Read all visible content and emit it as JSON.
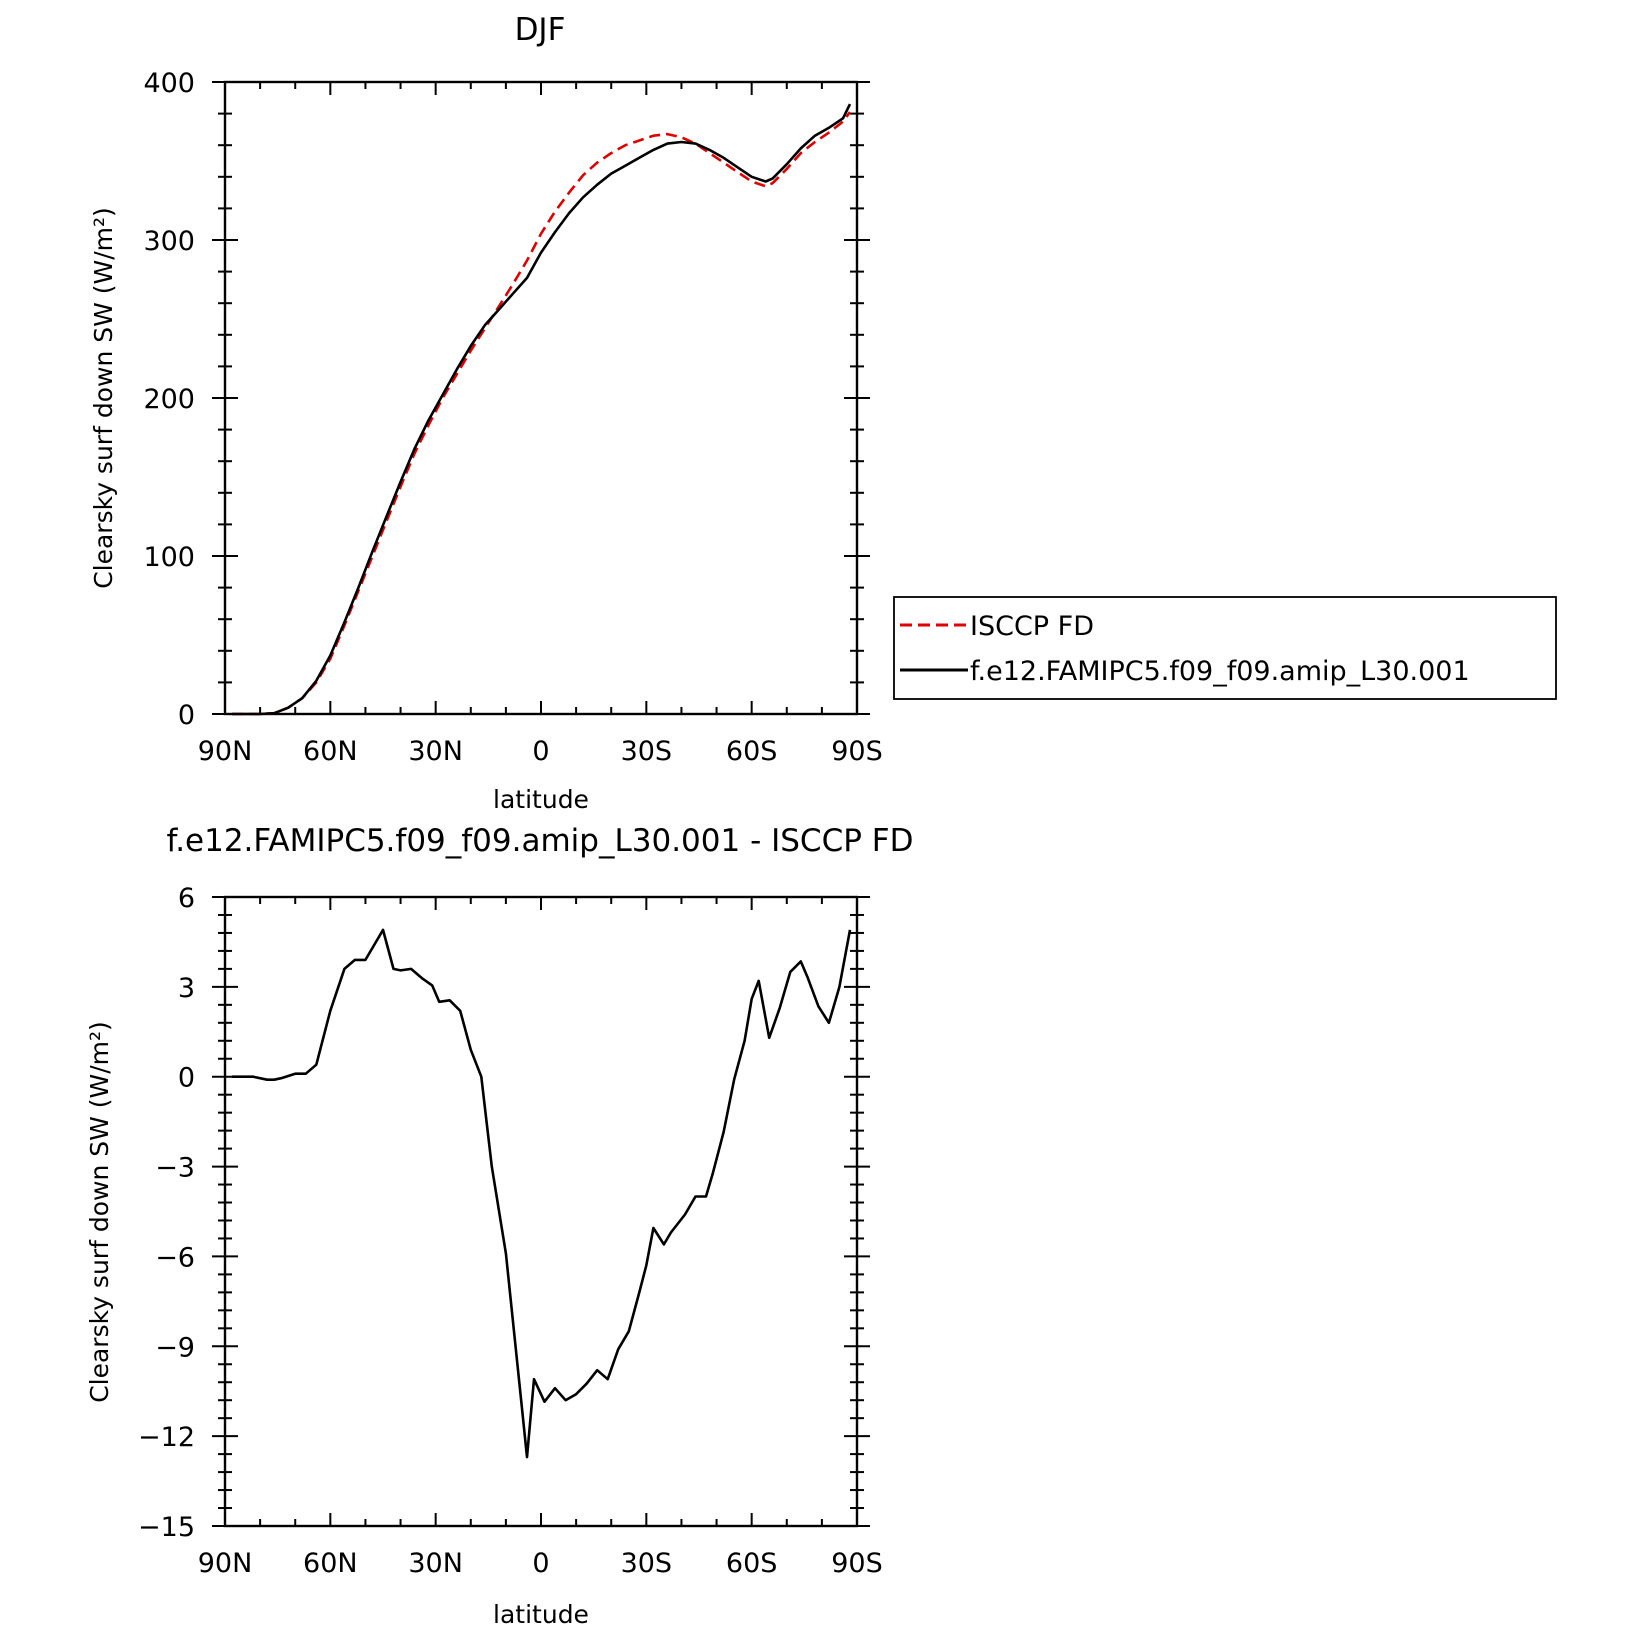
{
  "chart_data": [
    {
      "type": "line",
      "title": "DJF",
      "xlabel": "latitude",
      "ylabel": "Clearsky surf down SW (W/m²)",
      "xlim": [
        90,
        -90
      ],
      "ylim": [
        0,
        400
      ],
      "x_ticks": [
        90,
        60,
        30,
        0,
        -30,
        -60,
        -90
      ],
      "x_tick_labels": [
        "90N",
        "60N",
        "30N",
        "0",
        "30S",
        "60S",
        "90S"
      ],
      "y_ticks": [
        0,
        100,
        200,
        300,
        400
      ],
      "y_tick_labels": [
        "0",
        "100",
        "200",
        "300",
        "400"
      ],
      "legend_position": "right",
      "series": [
        {
          "name": "ISCCP FD",
          "color": "#e00000",
          "dash": "dashed",
          "points": [
            [
              88,
              0
            ],
            [
              84,
              0
            ],
            [
              80,
              0
            ],
            [
              76,
              0.5
            ],
            [
              72,
              4
            ],
            [
              68,
              10
            ],
            [
              64,
              20
            ],
            [
              60,
              35
            ],
            [
              56,
              56
            ],
            [
              52,
              78
            ],
            [
              48,
              100
            ],
            [
              44,
              122
            ],
            [
              40,
              144
            ],
            [
              36,
              165
            ],
            [
              32,
              183
            ],
            [
              28,
              200
            ],
            [
              24,
              215
            ],
            [
              20,
              230
            ],
            [
              16,
              244
            ],
            [
              12,
              258
            ],
            [
              8,
              272
            ],
            [
              4,
              287
            ],
            [
              0,
              304
            ],
            [
              -4,
              318
            ],
            [
              -8,
              330
            ],
            [
              -12,
              341
            ],
            [
              -16,
              349
            ],
            [
              -20,
              355
            ],
            [
              -24,
              360
            ],
            [
              -28,
              363
            ],
            [
              -32,
              366
            ],
            [
              -36,
              367
            ],
            [
              -40,
              365
            ],
            [
              -44,
              361
            ],
            [
              -48,
              355
            ],
            [
              -52,
              349
            ],
            [
              -56,
              343
            ],
            [
              -60,
              337
            ],
            [
              -64,
              334
            ],
            [
              -66,
              336
            ],
            [
              -70,
              345
            ],
            [
              -74,
              355
            ],
            [
              -78,
              362
            ],
            [
              -82,
              368
            ],
            [
              -86,
              375
            ],
            [
              -88,
              381
            ]
          ]
        },
        {
          "name": "f.e12.FAMIPC5.f09_f09.amip_L30.001",
          "color": "#000000",
          "dash": "solid",
          "points": [
            [
              88,
              0
            ],
            [
              84,
              0
            ],
            [
              80,
              0
            ],
            [
              76,
              0.5
            ],
            [
              72,
              4
            ],
            [
              68,
              10
            ],
            [
              64,
              21
            ],
            [
              60,
              37
            ],
            [
              56,
              58
            ],
            [
              52,
              80
            ],
            [
              48,
              103
            ],
            [
              44,
              125
            ],
            [
              40,
              147
            ],
            [
              36,
              168
            ],
            [
              32,
              186
            ],
            [
              28,
              202
            ],
            [
              24,
              218
            ],
            [
              20,
              233
            ],
            [
              16,
              246
            ],
            [
              12,
              256
            ],
            [
              8,
              266
            ],
            [
              4,
              276
            ],
            [
              0,
              292
            ],
            [
              -4,
              305
            ],
            [
              -8,
              317
            ],
            [
              -12,
              327
            ],
            [
              -16,
              335
            ],
            [
              -20,
              342
            ],
            [
              -24,
              347
            ],
            [
              -28,
              352
            ],
            [
              -32,
              357
            ],
            [
              -36,
              361
            ],
            [
              -40,
              362
            ],
            [
              -44,
              361
            ],
            [
              -48,
              357
            ],
            [
              -52,
              352
            ],
            [
              -56,
              346
            ],
            [
              -60,
              340
            ],
            [
              -64,
              337
            ],
            [
              -66,
              339
            ],
            [
              -70,
              348
            ],
            [
              -74,
              358
            ],
            [
              -78,
              366
            ],
            [
              -82,
              371
            ],
            [
              -86,
              377
            ],
            [
              -88,
              386
            ]
          ]
        }
      ]
    },
    {
      "type": "line",
      "title": "f.e12.FAMIPC5.f09_f09.amip_L30.001 - ISCCP FD",
      "xlabel": "latitude",
      "ylabel": "Clearsky surf down SW (W/m²)",
      "xlim": [
        90,
        -90
      ],
      "ylim": [
        -15,
        6
      ],
      "x_ticks": [
        90,
        60,
        30,
        0,
        -30,
        -60,
        -90
      ],
      "x_tick_labels": [
        "90N",
        "60N",
        "30N",
        "0",
        "30S",
        "60S",
        "90S"
      ],
      "y_ticks": [
        6,
        3,
        0,
        -3,
        -6,
        -9,
        -12,
        -15
      ],
      "y_tick_labels": [
        "6",
        "3",
        "0",
        "−3",
        "−6",
        "−9",
        "−12",
        "−15"
      ],
      "series": [
        {
          "color": "#000000",
          "dash": "solid",
          "points": [
            [
              88,
              0
            ],
            [
              82,
              0
            ],
            [
              78,
              -0.1
            ],
            [
              76,
              -0.1
            ],
            [
              74,
              -0.05
            ],
            [
              70,
              0.1
            ],
            [
              67,
              0.1
            ],
            [
              64,
              0.4
            ],
            [
              60,
              2.2
            ],
            [
              56,
              3.6
            ],
            [
              53,
              3.9
            ],
            [
              50,
              3.9
            ],
            [
              47,
              4.5
            ],
            [
              45,
              4.9
            ],
            [
              42,
              3.6
            ],
            [
              40,
              3.55
            ],
            [
              37,
              3.6
            ],
            [
              34,
              3.3
            ],
            [
              31,
              3.05
            ],
            [
              29,
              2.5
            ],
            [
              26,
              2.55
            ],
            [
              23,
              2.2
            ],
            [
              20,
              0.9
            ],
            [
              17,
              0
            ],
            [
              14,
              -3
            ],
            [
              10,
              -5.9
            ],
            [
              6,
              -10.4
            ],
            [
              4,
              -12.7
            ],
            [
              2,
              -10.1
            ],
            [
              -1,
              -10.85
            ],
            [
              -4,
              -10.4
            ],
            [
              -7,
              -10.8
            ],
            [
              -10,
              -10.6
            ],
            [
              -13,
              -10.25
            ],
            [
              -16,
              -9.8
            ],
            [
              -19,
              -10.1
            ],
            [
              -22,
              -9.1
            ],
            [
              -25,
              -8.5
            ],
            [
              -28,
              -7.2
            ],
            [
              -30,
              -6.3
            ],
            [
              -32,
              -5.05
            ],
            [
              -35,
              -5.6
            ],
            [
              -37,
              -5.2
            ],
            [
              -41,
              -4.6
            ],
            [
              -44,
              -4.0
            ],
            [
              -47,
              -4.0
            ],
            [
              -49,
              -3.2
            ],
            [
              -52,
              -1.85
            ],
            [
              -55,
              -0.1
            ],
            [
              -58,
              1.2
            ],
            [
              -60,
              2.6
            ],
            [
              -62,
              3.2
            ],
            [
              -65,
              1.3
            ],
            [
              -68,
              2.3
            ],
            [
              -71,
              3.5
            ],
            [
              -74,
              3.85
            ],
            [
              -76,
              3.3
            ],
            [
              -79,
              2.35
            ],
            [
              -82,
              1.8
            ],
            [
              -85,
              3.0
            ],
            [
              -88,
              4.9
            ]
          ]
        }
      ]
    }
  ]
}
